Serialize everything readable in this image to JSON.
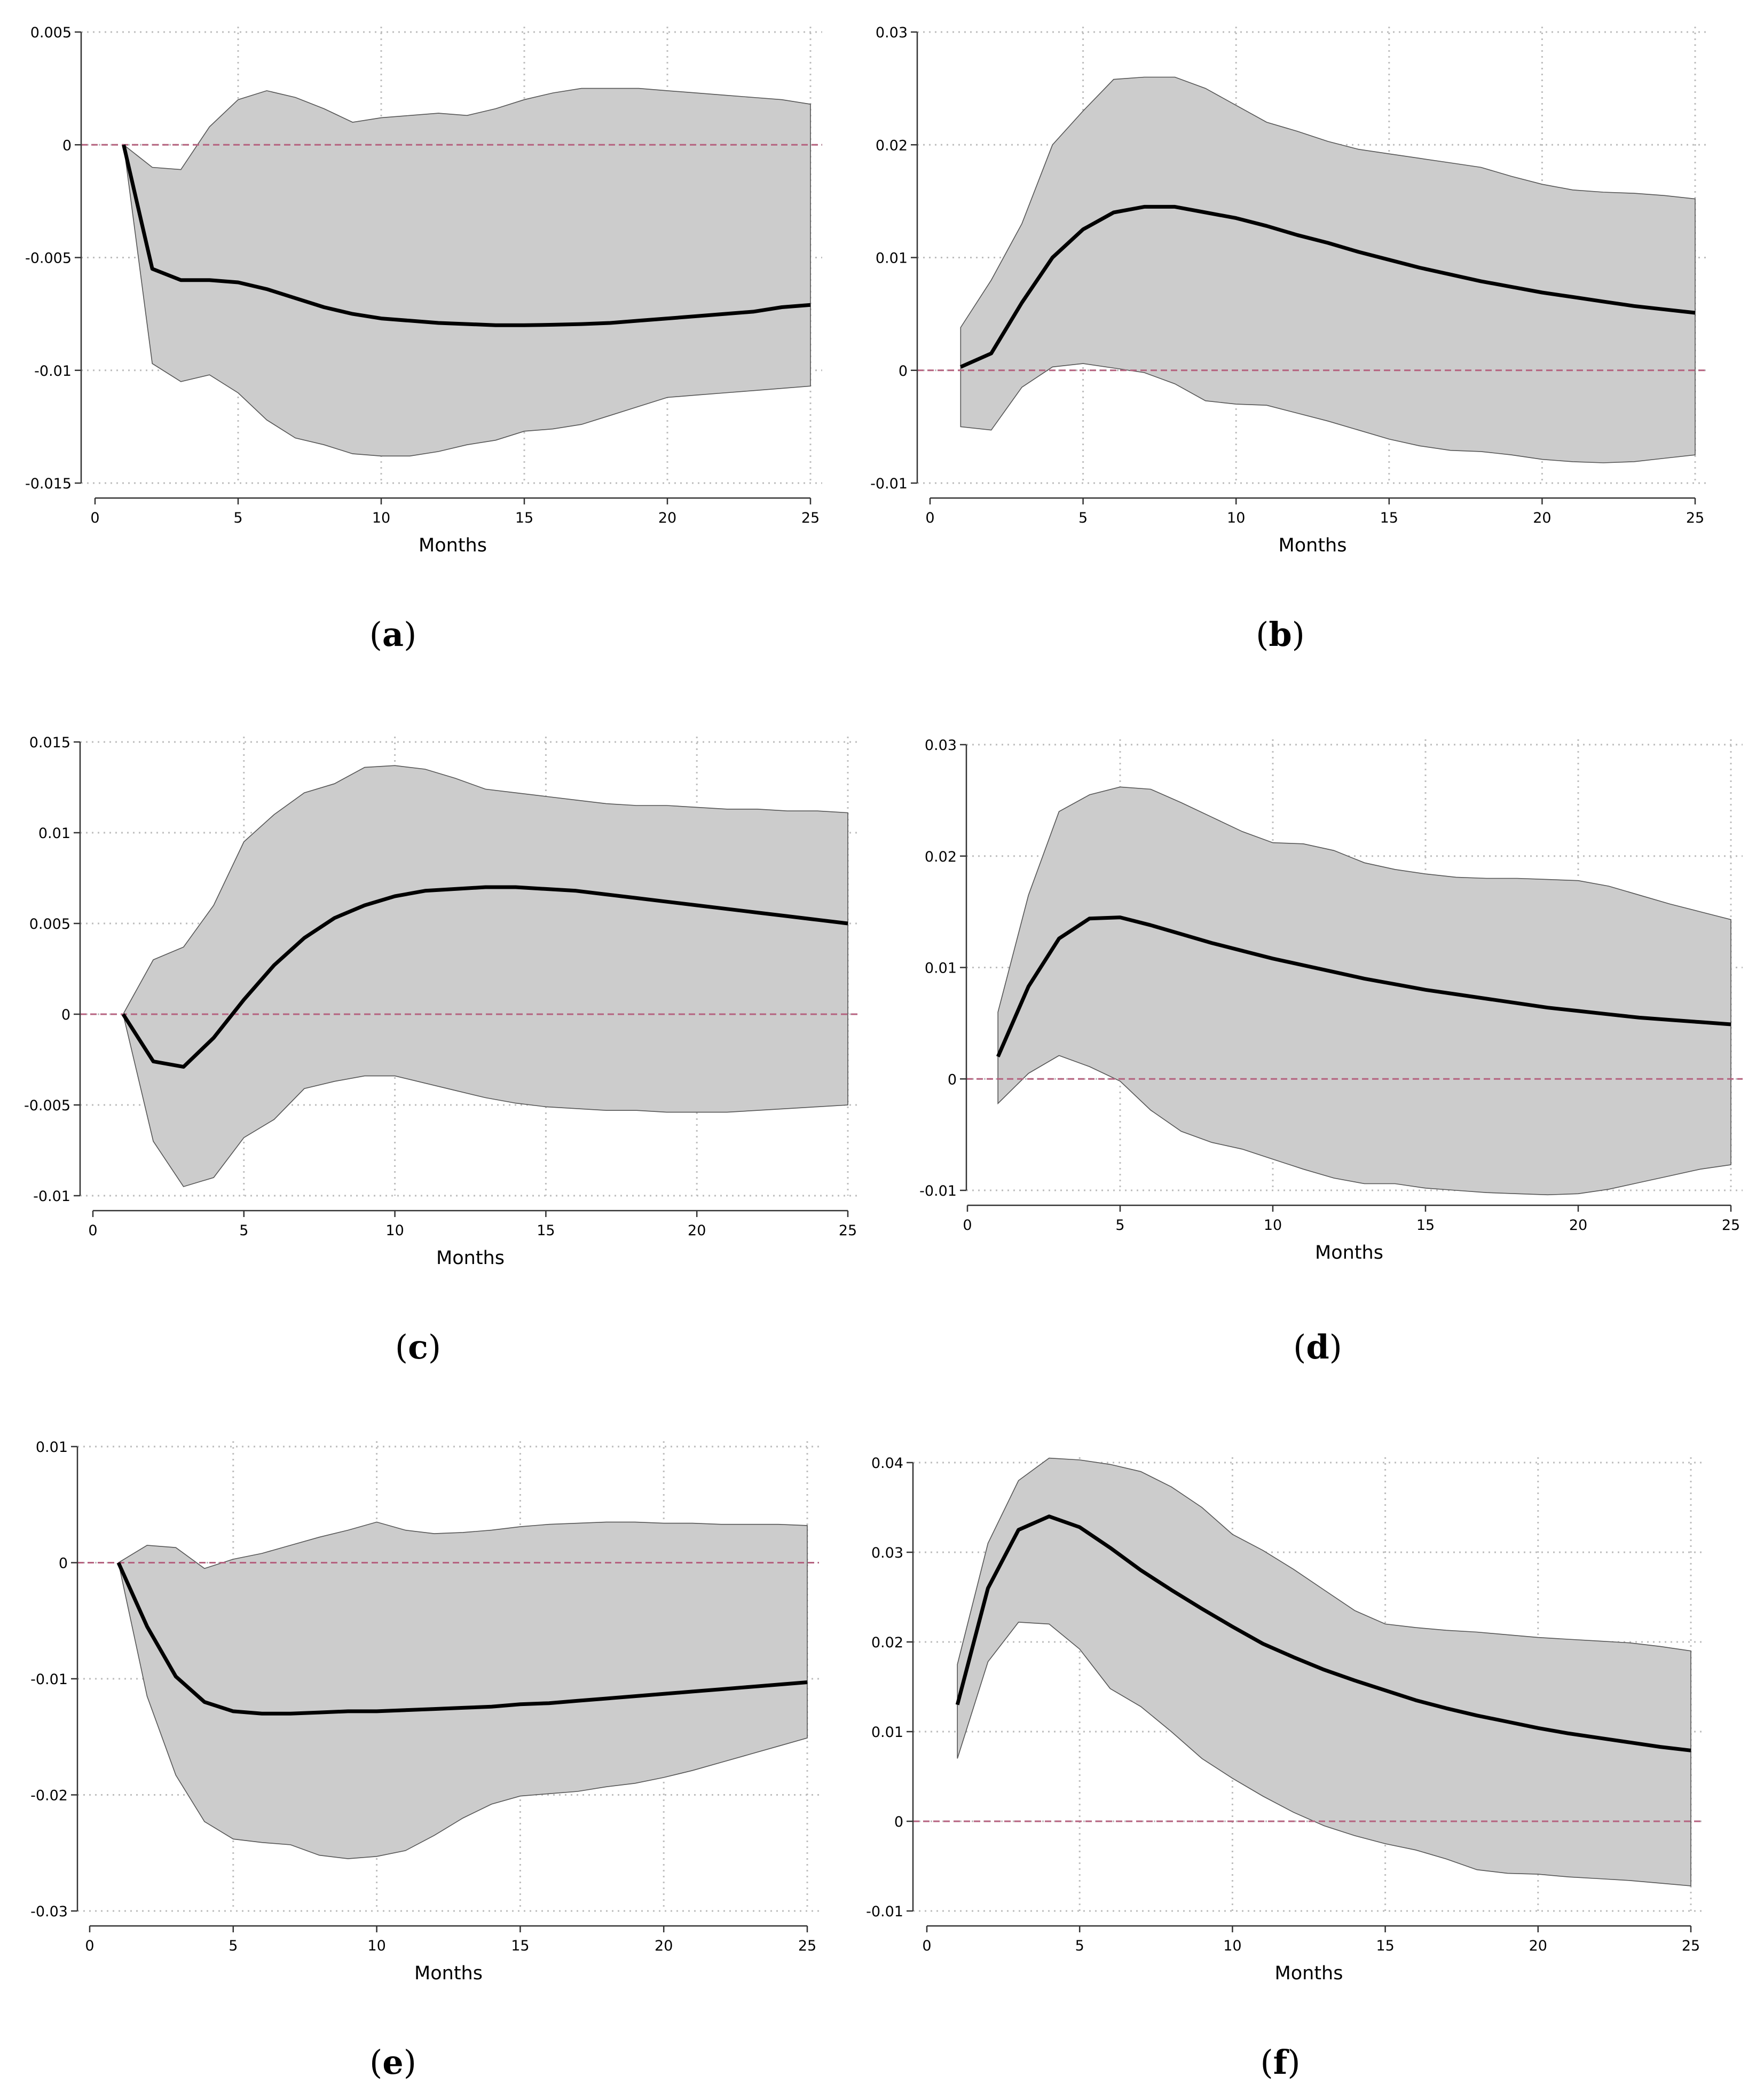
{
  "chart_data": [
    {
      "type": "line",
      "caption_letter": "a",
      "xlabel": "Months",
      "xlim": [
        0,
        25
      ],
      "ylim": [
        -0.015,
        0.005
      ],
      "xticks": [
        "0",
        "5",
        "10",
        "15",
        "20",
        "25"
      ],
      "xtick_values": [
        0,
        5,
        10,
        15,
        20,
        25
      ],
      "yticks": [
        "-0.015",
        "-0.01",
        "-0.005",
        "0",
        "0.005"
      ],
      "ytick_values": [
        -0.015,
        -0.01,
        -0.005,
        0,
        0.005
      ],
      "zero_line": true,
      "x": [
        1,
        2,
        3,
        4,
        5,
        6,
        7,
        8,
        9,
        10,
        11,
        12,
        13,
        14,
        15,
        16,
        17,
        18,
        19,
        20,
        21,
        22,
        23,
        24,
        25
      ],
      "series": [
        {
          "name": "response",
          "values": [
            0,
            -0.0055,
            -0.006,
            -0.006,
            -0.0061,
            -0.0064,
            -0.0068,
            -0.0072,
            -0.0075,
            -0.0077,
            -0.0078,
            -0.0079,
            -0.00795,
            -0.008,
            -0.008,
            -0.00798,
            -0.00795,
            -0.0079,
            -0.0078,
            -0.0077,
            -0.0076,
            -0.0075,
            -0.0074,
            -0.0072,
            -0.0071
          ]
        },
        {
          "name": "upper",
          "values": [
            0,
            -0.001,
            -0.0011,
            0.0008,
            0.002,
            0.0024,
            0.0021,
            0.0016,
            0.001,
            0.0012,
            0.0013,
            0.0014,
            0.0013,
            0.0016,
            0.002,
            0.0023,
            0.0025,
            0.0025,
            0.0025,
            0.0024,
            0.0023,
            0.0022,
            0.0021,
            0.002,
            0.0018
          ]
        },
        {
          "name": "lower",
          "values": [
            0,
            -0.0097,
            -0.0105,
            -0.0102,
            -0.011,
            -0.0122,
            -0.013,
            -0.0133,
            -0.0137,
            -0.0138,
            -0.0138,
            -0.0136,
            -0.0133,
            -0.0131,
            -0.0127,
            -0.0126,
            -0.0124,
            -0.012,
            -0.0116,
            -0.0112,
            -0.0111,
            -0.011,
            -0.0109,
            -0.0108,
            -0.0107
          ]
        }
      ]
    },
    {
      "type": "line",
      "caption_letter": "b",
      "xlabel": "Months",
      "xlim": [
        0,
        25
      ],
      "ylim": [
        -0.01,
        0.03
      ],
      "xticks": [
        "0",
        "5",
        "10",
        "15",
        "20",
        "25"
      ],
      "xtick_values": [
        0,
        5,
        10,
        15,
        20,
        25
      ],
      "yticks": [
        "-0.01",
        "0",
        "0.01",
        "0.02",
        "0.03"
      ],
      "ytick_values": [
        -0.01,
        0,
        0.01,
        0.02,
        0.03
      ],
      "zero_line": true,
      "x": [
        1,
        2,
        3,
        4,
        5,
        6,
        7,
        8,
        9,
        10,
        11,
        12,
        13,
        14,
        15,
        16,
        17,
        18,
        19,
        20,
        21,
        22,
        23,
        24,
        25
      ],
      "series": [
        {
          "name": "response",
          "values": [
            0.0003,
            0.0015,
            0.006,
            0.01,
            0.0125,
            0.014,
            0.0145,
            0.0145,
            0.014,
            0.0135,
            0.0128,
            0.012,
            0.0113,
            0.0105,
            0.0098,
            0.0091,
            0.0085,
            0.0079,
            0.0074,
            0.0069,
            0.0065,
            0.0061,
            0.0057,
            0.0054,
            0.0051
          ]
        },
        {
          "name": "upper",
          "values": [
            0.0038,
            0.008,
            0.013,
            0.02,
            0.023,
            0.0258,
            0.026,
            0.026,
            0.025,
            0.0235,
            0.022,
            0.0212,
            0.0203,
            0.0196,
            0.0192,
            0.0188,
            0.0184,
            0.018,
            0.0172,
            0.0165,
            0.016,
            0.0158,
            0.0157,
            0.0155,
            0.0152
          ]
        },
        {
          "name": "lower",
          "values": [
            -0.005,
            -0.0053,
            -0.0015,
            0.0003,
            0.0006,
            0.0002,
            -0.0002,
            -0.0012,
            -0.0027,
            -0.003,
            -0.0031,
            -0.0038,
            -0.0045,
            -0.0053,
            -0.0061,
            -0.0067,
            -0.0071,
            -0.0072,
            -0.0075,
            -0.0079,
            -0.0081,
            -0.0082,
            -0.0081,
            -0.0078,
            -0.0075
          ]
        }
      ]
    },
    {
      "type": "line",
      "caption_letter": "c",
      "xlabel": "Months",
      "xlim": [
        0,
        25
      ],
      "ylim": [
        -0.01,
        0.015
      ],
      "xticks": [
        "0",
        "5",
        "10",
        "15",
        "20",
        "25"
      ],
      "xtick_values": [
        0,
        5,
        10,
        15,
        20,
        25
      ],
      "yticks": [
        "-0.01",
        "-0.005",
        "0",
        "0.005",
        "0.01",
        "0.015"
      ],
      "ytick_values": [
        -0.01,
        -0.005,
        0,
        0.005,
        0.01,
        0.015
      ],
      "zero_line": true,
      "x": [
        1,
        2,
        3,
        4,
        5,
        6,
        7,
        8,
        9,
        10,
        11,
        12,
        13,
        14,
        15,
        16,
        17,
        18,
        19,
        20,
        21,
        22,
        23,
        24,
        25
      ],
      "series": [
        {
          "name": "response",
          "values": [
            0,
            -0.0026,
            -0.0029,
            -0.0013,
            0.0008,
            0.0027,
            0.0042,
            0.0053,
            0.006,
            0.0065,
            0.0068,
            0.0069,
            0.007,
            0.007,
            0.0069,
            0.0068,
            0.0066,
            0.0064,
            0.0062,
            0.006,
            0.0058,
            0.0056,
            0.0054,
            0.0052,
            0.005
          ]
        },
        {
          "name": "upper",
          "values": [
            0,
            0.003,
            0.0037,
            0.006,
            0.0095,
            0.011,
            0.0122,
            0.0127,
            0.0136,
            0.0137,
            0.0135,
            0.013,
            0.0124,
            0.0122,
            0.012,
            0.0118,
            0.0116,
            0.0115,
            0.0115,
            0.0114,
            0.0113,
            0.0113,
            0.0112,
            0.0112,
            0.0111
          ]
        },
        {
          "name": "lower",
          "values": [
            0,
            -0.007,
            -0.0095,
            -0.009,
            -0.0068,
            -0.0058,
            -0.0041,
            -0.0037,
            -0.0034,
            -0.0034,
            -0.0038,
            -0.0042,
            -0.0046,
            -0.0049,
            -0.0051,
            -0.0052,
            -0.0053,
            -0.0053,
            -0.0054,
            -0.0054,
            -0.0054,
            -0.0053,
            -0.0052,
            -0.0051,
            -0.005
          ]
        }
      ]
    },
    {
      "type": "line",
      "caption_letter": "d",
      "xlabel": "Months",
      "xlim": [
        0,
        25
      ],
      "ylim": [
        -0.01,
        0.03
      ],
      "xticks": [
        "0",
        "5",
        "10",
        "15",
        "20",
        "25"
      ],
      "xtick_values": [
        0,
        5,
        10,
        15,
        20,
        25
      ],
      "yticks": [
        "-0.01",
        "0",
        "0.01",
        "0.02",
        "0.03"
      ],
      "ytick_values": [
        -0.01,
        0,
        0.01,
        0.02,
        0.03
      ],
      "zero_line": true,
      "x": [
        1,
        2,
        3,
        4,
        5,
        6,
        7,
        8,
        9,
        10,
        11,
        12,
        13,
        14,
        15,
        16,
        17,
        18,
        19,
        20,
        21,
        22,
        23,
        24,
        25
      ],
      "series": [
        {
          "name": "response",
          "values": [
            0.002,
            0.0083,
            0.0126,
            0.0144,
            0.0145,
            0.0138,
            0.013,
            0.0122,
            0.0115,
            0.0108,
            0.0102,
            0.0096,
            0.009,
            0.0085,
            0.008,
            0.0076,
            0.0072,
            0.0068,
            0.0064,
            0.0061,
            0.0058,
            0.0055,
            0.0053,
            0.0051,
            0.0049
          ]
        },
        {
          "name": "upper",
          "values": [
            0.006,
            0.0165,
            0.024,
            0.0255,
            0.0262,
            0.026,
            0.0248,
            0.0235,
            0.0222,
            0.0212,
            0.0211,
            0.0205,
            0.0194,
            0.0188,
            0.0184,
            0.0181,
            0.018,
            0.018,
            0.0179,
            0.0178,
            0.0173,
            0.0165,
            0.0157,
            0.015,
            0.0143
          ]
        },
        {
          "name": "lower",
          "values": [
            -0.0022,
            0.0005,
            0.0021,
            0.0011,
            -0.0002,
            -0.0028,
            -0.0047,
            -0.0057,
            -0.0063,
            -0.0072,
            -0.0081,
            -0.0089,
            -0.0094,
            -0.0094,
            -0.0098,
            -0.01,
            -0.0102,
            -0.0103,
            -0.0104,
            -0.0103,
            -0.0099,
            -0.0093,
            -0.0087,
            -0.0081,
            -0.0077
          ]
        }
      ]
    },
    {
      "type": "line",
      "caption_letter": "e",
      "xlabel": "Months",
      "xlim": [
        0,
        25
      ],
      "ylim": [
        -0.03,
        0.01
      ],
      "xticks": [
        "0",
        "5",
        "10",
        "15",
        "20",
        "25"
      ],
      "xtick_values": [
        0,
        5,
        10,
        15,
        20,
        25
      ],
      "yticks": [
        "-0.03",
        "-0.02",
        "-0.01",
        "0",
        "0.01"
      ],
      "ytick_values": [
        -0.03,
        -0.02,
        -0.01,
        0,
        0.01
      ],
      "zero_line": true,
      "x": [
        1,
        2,
        3,
        4,
        5,
        6,
        7,
        8,
        9,
        10,
        11,
        12,
        13,
        14,
        15,
        16,
        17,
        18,
        19,
        20,
        21,
        22,
        23,
        24,
        25
      ],
      "series": [
        {
          "name": "response",
          "values": [
            0,
            -0.0055,
            -0.0098,
            -0.012,
            -0.0128,
            -0.013,
            -0.013,
            -0.0129,
            -0.0128,
            -0.0128,
            -0.0127,
            -0.0126,
            -0.0125,
            -0.0124,
            -0.0122,
            -0.0121,
            -0.0119,
            -0.0117,
            -0.0115,
            -0.0113,
            -0.0111,
            -0.0109,
            -0.0107,
            -0.0105,
            -0.0103
          ]
        },
        {
          "name": "upper",
          "values": [
            0,
            0.0015,
            0.0013,
            -0.0005,
            0.0003,
            0.0008,
            0.0015,
            0.0022,
            0.0028,
            0.0035,
            0.0028,
            0.0025,
            0.0026,
            0.0028,
            0.0031,
            0.0033,
            0.0034,
            0.0035,
            0.0035,
            0.0034,
            0.0034,
            0.0033,
            0.0033,
            0.0033,
            0.0032
          ]
        },
        {
          "name": "lower",
          "values": [
            0,
            -0.0115,
            -0.0183,
            -0.0223,
            -0.0238,
            -0.0241,
            -0.0243,
            -0.0252,
            -0.0255,
            -0.0253,
            -0.0248,
            -0.0235,
            -0.022,
            -0.0208,
            -0.0201,
            -0.0199,
            -0.0197,
            -0.0193,
            -0.019,
            -0.0185,
            -0.0179,
            -0.0172,
            -0.0165,
            -0.0158,
            -0.0151
          ]
        }
      ]
    },
    {
      "type": "line",
      "caption_letter": "f",
      "xlabel": "Months",
      "xlim": [
        0,
        25
      ],
      "ylim": [
        -0.01,
        0.04
      ],
      "xticks": [
        "0",
        "5",
        "10",
        "15",
        "20",
        "25"
      ],
      "xtick_values": [
        0,
        5,
        10,
        15,
        20,
        25
      ],
      "yticks": [
        "-0.01",
        "0",
        "0.01",
        "0.02",
        "0.03",
        "0.04"
      ],
      "ytick_values": [
        -0.01,
        0,
        0.01,
        0.02,
        0.03,
        0.04
      ],
      "zero_line": true,
      "x": [
        1,
        2,
        3,
        4,
        5,
        6,
        7,
        8,
        9,
        10,
        11,
        12,
        13,
        14,
        15,
        16,
        17,
        18,
        19,
        20,
        21,
        22,
        23,
        24,
        25
      ],
      "series": [
        {
          "name": "response",
          "values": [
            0.013,
            0.026,
            0.0325,
            0.034,
            0.0328,
            0.0305,
            0.028,
            0.0258,
            0.0237,
            0.0217,
            0.0198,
            0.0183,
            0.0169,
            0.0157,
            0.0146,
            0.0135,
            0.0126,
            0.0118,
            0.0111,
            0.0104,
            0.0098,
            0.0093,
            0.0088,
            0.0083,
            0.0079
          ]
        },
        {
          "name": "upper",
          "values": [
            0.0175,
            0.031,
            0.038,
            0.0405,
            0.0403,
            0.0398,
            0.039,
            0.0373,
            0.035,
            0.032,
            0.0302,
            0.0281,
            0.0258,
            0.0235,
            0.022,
            0.0216,
            0.0213,
            0.0211,
            0.0208,
            0.0205,
            0.0203,
            0.0201,
            0.0199,
            0.0195,
            0.019
          ]
        },
        {
          "name": "lower",
          "values": [
            0.007,
            0.0178,
            0.0222,
            0.022,
            0.0192,
            0.0148,
            0.0128,
            0.01,
            0.007,
            0.0048,
            0.0028,
            0.001,
            -0.0005,
            -0.0016,
            -0.0025,
            -0.0032,
            -0.0042,
            -0.0054,
            -0.0058,
            -0.0059,
            -0.0062,
            -0.0064,
            -0.0066,
            -0.0069,
            -0.0072
          ]
        }
      ]
    }
  ]
}
